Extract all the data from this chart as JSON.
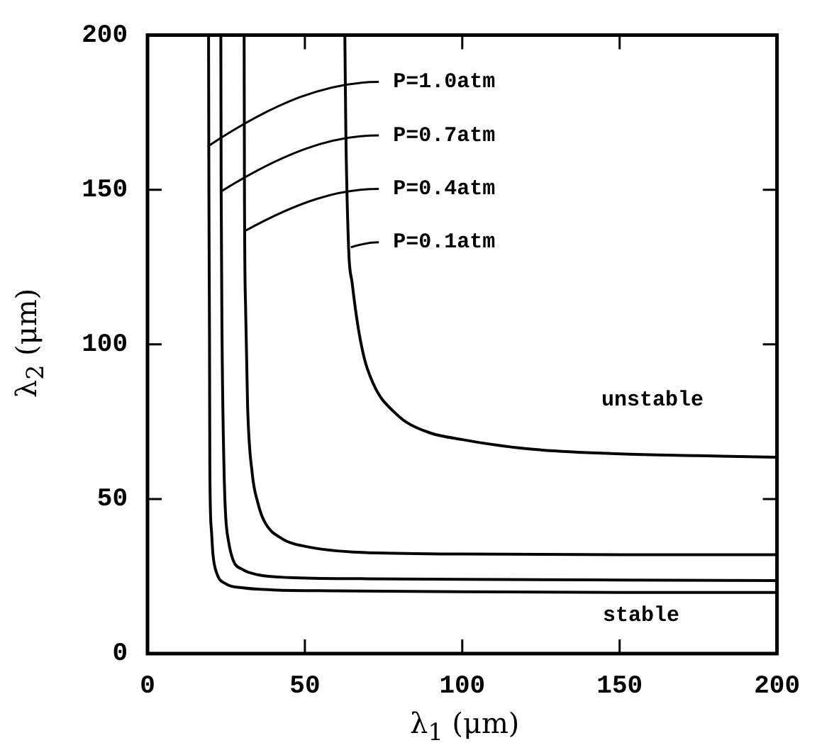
{
  "chart_data": {
    "type": "line",
    "xlabel": "λ$_{1}$ (μm)",
    "ylabel": "λ$_{2}$ (μm)",
    "xlim": [
      0,
      200
    ],
    "ylim": [
      0,
      200
    ],
    "xticks": [
      0,
      50,
      100,
      150,
      200
    ],
    "yticks": [
      0,
      50,
      100,
      150,
      200
    ],
    "grid": false,
    "legend": false,
    "marker": "none",
    "line_style": "solid",
    "series": [
      {
        "color": "#000000",
        "x": [
          19.4,
          19.5,
          19.7,
          19.8,
          20.3,
          20.8,
          22,
          25,
          30,
          40,
          60,
          100,
          150,
          200
        ],
        "values": [
          200,
          150,
          100,
          60,
          40,
          32,
          26,
          22.5,
          21.3,
          20.6,
          20.3,
          20,
          19.8,
          19.8
        ]
      },
      {
        "color": "#000000",
        "x": [
          23.3,
          23.4,
          23.7,
          24.3,
          24.8,
          25.8,
          27.3,
          30,
          35,
          45,
          70,
          100,
          150,
          200
        ],
        "values": [
          200,
          150,
          100,
          60,
          45,
          36,
          30,
          27.3,
          25.5,
          24.6,
          24.2,
          24,
          23.8,
          23.6
        ]
      },
      {
        "color": "#000000",
        "x": [
          30.7,
          30.8,
          31.2,
          31.8,
          33.3,
          35,
          37,
          43,
          50,
          68,
          100,
          150,
          200
        ],
        "values": [
          200,
          150,
          110,
          80,
          58,
          49,
          43,
          37,
          34.7,
          32.7,
          32.2,
          32,
          32
        ]
      },
      {
        "color": "#000000",
        "x": [
          62.7,
          63,
          63.9,
          65,
          67,
          69,
          71,
          74,
          78,
          82,
          90,
          100,
          120,
          150,
          175,
          200
        ],
        "values": [
          200,
          170,
          131,
          120,
          105,
          95,
          89,
          83,
          78.5,
          75,
          71.3,
          69.2,
          66.3,
          64.6,
          64,
          63.5
        ]
      }
    ],
    "annotations": [
      {
        "text": "P=1.0atm",
        "x": 19.1,
        "y": 164
      },
      {
        "text": "P=0.7atm",
        "x": 23.6,
        "y": 149.6
      },
      {
        "text": "P=0.4atm",
        "x": 31,
        "y": 136.7
      },
      {
        "text": "P=0.1atm",
        "x": 64.6,
        "y": 131.4
      },
      "unstable",
      "stable"
    ]
  }
}
